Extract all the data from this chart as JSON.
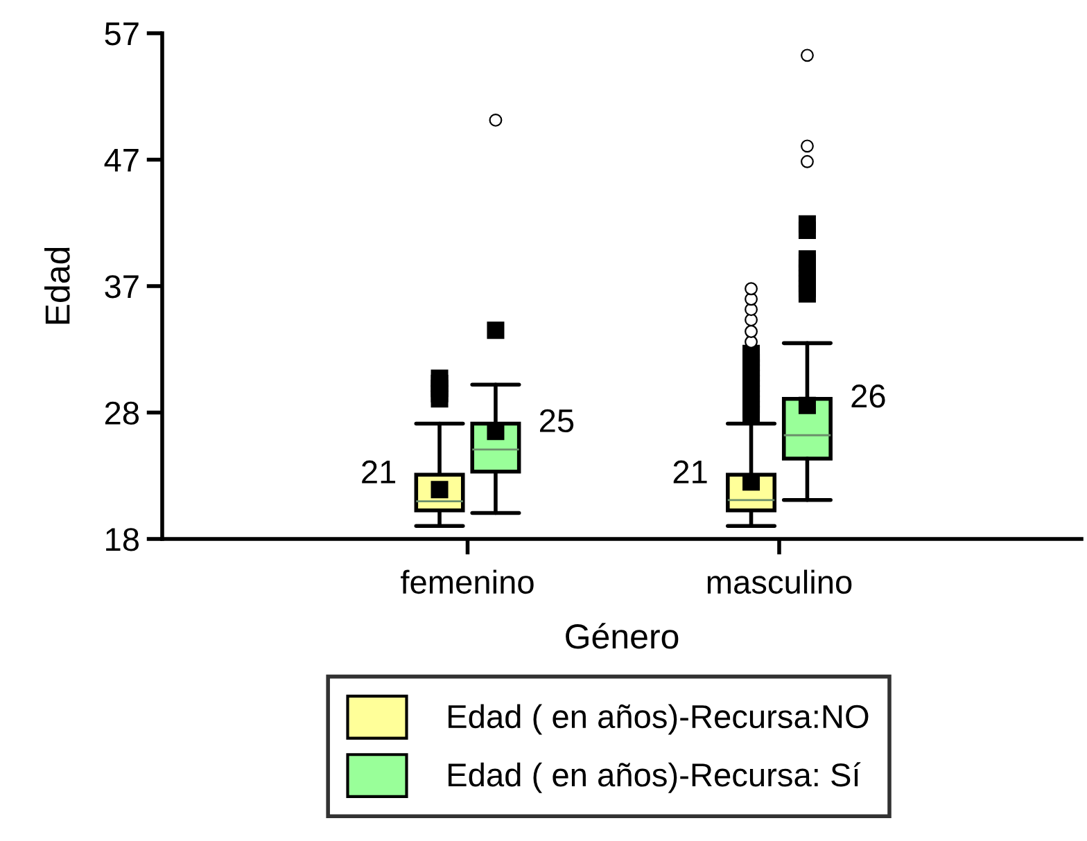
{
  "chart_data": {
    "type": "box",
    "xlabel": "Género",
    "ylabel": "Edad",
    "categories": [
      "femenino",
      "masculino"
    ],
    "ylim": [
      18,
      57
    ],
    "yticks": [
      18,
      {
        "value": 27.75,
        "label": "28"
      },
      {
        "value": 37.5,
        "label": "37"
      },
      {
        "value": 47.25,
        "label": "47"
      },
      57
    ],
    "legend": "bottom",
    "grid": false,
    "series": [
      {
        "name": "Edad ( en años)-Recursa:NO",
        "color": "#ffff99",
        "value_labels": [
          "21",
          "21"
        ],
        "boxes": [
          {
            "low": 19.0,
            "q1": 20.2,
            "median": 20.9,
            "q3": 22.95,
            "high": 26.9,
            "mean": 21.8,
            "outliers": [
              28.8,
              29.2,
              29.6,
              30.0,
              30.4
            ]
          },
          {
            "low": 19.0,
            "q1": 20.2,
            "median": 21.0,
            "q3": 22.95,
            "high": 26.9,
            "mean": 22.4,
            "outliers": [
              27.6,
              28.0,
              28.4,
              28.8,
              29.2,
              29.6,
              30.0,
              30.4,
              30.8,
              31.2,
              31.6,
              32.0,
              32.3,
              33.2,
              34.0,
              34.9,
              35.7,
              36.5,
              37.3
            ]
          }
        ]
      },
      {
        "name": "Edad ( en años)-Recursa: Sí",
        "color": "#99ff99",
        "value_labels": [
          "25",
          "26"
        ],
        "boxes": [
          {
            "low": 20.0,
            "q1": 23.2,
            "median": 24.9,
            "q3": 26.9,
            "high": 29.9,
            "mean": 26.3,
            "outliers": [
              34.1,
              50.3
            ]
          },
          {
            "low": 21.0,
            "q1": 24.2,
            "median": 26.0,
            "q3": 28.8,
            "high": 33.1,
            "mean": 28.3,
            "outliers": [
              36.9,
              37.3,
              37.7,
              38.1,
              38.5,
              38.9,
              39.3,
              39.6,
              41.8,
              42.3,
              47.1,
              48.3,
              55.3
            ]
          }
        ]
      }
    ]
  }
}
